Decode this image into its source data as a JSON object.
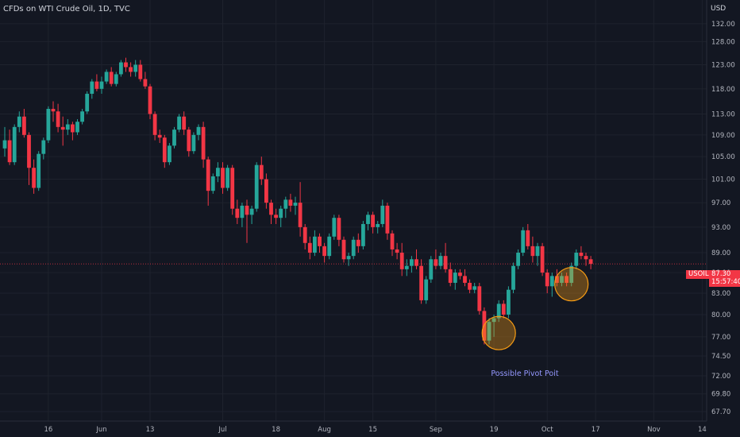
{
  "header": {
    "title": "CFDs on WTI Crude Oil, 1D, TVC",
    "currency": "USD"
  },
  "price_badge": {
    "symbol": "USOIL",
    "last": "87.30",
    "countdown": "15:57:40"
  },
  "colors": {
    "up": "#26a69a",
    "down": "#f23645",
    "background": "#131722",
    "grid": "#1e222d",
    "annotation": "#f59b14",
    "annotation_text": "#9598ff"
  },
  "chart_data": {
    "type": "candlestick",
    "title": "CFDs on WTI Crude Oil, 1D, TVC",
    "y_axis": {
      "ylim": [
        66.6,
        137.5
      ],
      "ticks": [
        67.7,
        69.8,
        72.0,
        74.5,
        77.0,
        80.0,
        83.0,
        86.0,
        89.0,
        93.0,
        97.0,
        101.0,
        105.0,
        109.0,
        113.0,
        118.0,
        123.0,
        128.0,
        132.0
      ],
      "tick_labels": [
        "67.70",
        "69.80",
        "72.00",
        "74.50",
        "77.00",
        "80.00",
        "83.00",
        "86.00",
        "89.00",
        "93.00",
        "97.00",
        "101.00",
        "105.00",
        "109.00",
        "113.00",
        "118.00",
        "123.00",
        "128.00",
        "132.00"
      ],
      "scale": "log"
    },
    "x_axis": {
      "ticks": [
        {
          "label": "16",
          "index": 9
        },
        {
          "label": "Jun",
          "index": 20
        },
        {
          "label": "13",
          "index": 30
        },
        {
          "label": "Jul",
          "index": 45
        },
        {
          "label": "18",
          "index": 56
        },
        {
          "label": "Aug",
          "index": 66
        },
        {
          "label": "15",
          "index": 76
        },
        {
          "label": "Sep",
          "index": 89
        },
        {
          "label": "19",
          "index": 101
        },
        {
          "label": "Oct",
          "index": 112
        },
        {
          "label": "17",
          "index": 122
        },
        {
          "label": "Nov",
          "index": 134
        },
        {
          "label": "14",
          "index": 144
        }
      ]
    },
    "ohlc": [
      [
        106.5,
        110.5,
        105.0,
        108.0
      ],
      [
        108.0,
        110.0,
        103.5,
        104.0
      ],
      [
        104.0,
        111.0,
        103.5,
        110.5
      ],
      [
        110.5,
        113.5,
        109.5,
        112.5
      ],
      [
        112.5,
        114.0,
        108.5,
        109.0
      ],
      [
        109.0,
        109.5,
        100.0,
        103.0
      ],
      [
        103.0,
        104.5,
        98.5,
        99.5
      ],
      [
        99.5,
        106.0,
        99.0,
        105.5
      ],
      [
        105.5,
        108.5,
        104.5,
        108.0
      ],
      [
        108.0,
        114.5,
        107.5,
        114.0
      ],
      [
        114.0,
        115.5,
        111.5,
        113.5
      ],
      [
        113.5,
        115.0,
        109.5,
        110.5
      ],
      [
        110.5,
        112.5,
        107.0,
        110.0
      ],
      [
        110.0,
        112.0,
        109.0,
        111.0
      ],
      [
        111.0,
        111.5,
        108.0,
        109.5
      ],
      [
        109.5,
        112.0,
        109.0,
        111.5
      ],
      [
        111.5,
        114.0,
        111.0,
        113.5
      ],
      [
        113.5,
        117.5,
        113.0,
        117.0
      ],
      [
        117.0,
        120.0,
        116.0,
        119.5
      ],
      [
        119.5,
        121.0,
        117.5,
        118.0
      ],
      [
        118.0,
        120.5,
        117.0,
        119.5
      ],
      [
        119.5,
        122.0,
        119.0,
        121.5
      ],
      [
        121.5,
        122.5,
        118.5,
        119.0
      ],
      [
        119.0,
        121.5,
        118.5,
        121.0
      ],
      [
        121.0,
        124.0,
        120.5,
        123.5
      ],
      [
        123.5,
        124.5,
        121.5,
        122.5
      ],
      [
        122.5,
        123.5,
        120.5,
        121.5
      ],
      [
        121.5,
        124.0,
        120.5,
        123.0
      ],
      [
        123.0,
        124.0,
        119.5,
        120.0
      ],
      [
        120.0,
        121.5,
        118.0,
        118.5
      ],
      [
        118.5,
        119.0,
        112.0,
        113.0
      ],
      [
        113.0,
        113.5,
        108.0,
        109.0
      ],
      [
        109.0,
        110.0,
        107.5,
        108.5
      ],
      [
        108.5,
        109.0,
        103.0,
        104.0
      ],
      [
        104.0,
        107.5,
        103.5,
        107.0
      ],
      [
        107.0,
        110.5,
        106.5,
        110.0
      ],
      [
        110.0,
        113.0,
        109.5,
        112.5
      ],
      [
        112.5,
        113.5,
        109.0,
        110.0
      ],
      [
        110.0,
        110.5,
        105.0,
        106.0
      ],
      [
        106.0,
        109.5,
        105.5,
        109.0
      ],
      [
        109.0,
        111.0,
        108.0,
        110.5
      ],
      [
        110.5,
        111.5,
        103.0,
        104.5
      ],
      [
        104.5,
        105.0,
        96.5,
        99.0
      ],
      [
        99.0,
        102.0,
        98.5,
        101.5
      ],
      [
        101.5,
        104.0,
        100.5,
        103.0
      ],
      [
        103.0,
        104.0,
        98.5,
        99.5
      ],
      [
        99.5,
        103.5,
        99.0,
        103.0
      ],
      [
        103.0,
        103.5,
        95.0,
        96.0
      ],
      [
        96.0,
        97.5,
        93.5,
        94.5
      ],
      [
        94.5,
        97.0,
        93.0,
        96.5
      ],
      [
        96.5,
        97.5,
        90.5,
        95.0
      ],
      [
        95.0,
        96.5,
        93.5,
        96.0
      ],
      [
        96.0,
        104.0,
        95.5,
        103.5
      ],
      [
        103.5,
        105.0,
        100.0,
        101.0
      ],
      [
        101.0,
        102.0,
        96.0,
        97.0
      ],
      [
        97.0,
        97.5,
        93.5,
        95.0
      ],
      [
        95.0,
        96.0,
        93.5,
        94.5
      ],
      [
        94.5,
        96.5,
        93.0,
        96.0
      ],
      [
        96.0,
        98.0,
        94.5,
        97.5
      ],
      [
        97.5,
        98.5,
        95.5,
        96.5
      ],
      [
        96.5,
        98.0,
        95.0,
        97.0
      ],
      [
        97.0,
        100.5,
        91.5,
        93.0
      ],
      [
        93.0,
        93.5,
        89.5,
        90.5
      ],
      [
        90.5,
        91.5,
        88.0,
        89.0
      ],
      [
        89.0,
        92.5,
        88.5,
        91.5
      ],
      [
        91.5,
        92.0,
        89.0,
        90.0
      ],
      [
        90.0,
        90.5,
        87.5,
        88.5
      ],
      [
        88.5,
        92.0,
        88.0,
        91.5
      ],
      [
        91.5,
        95.0,
        91.0,
        94.5
      ],
      [
        94.5,
        95.0,
        90.0,
        91.0
      ],
      [
        91.0,
        91.5,
        87.5,
        88.0
      ],
      [
        88.0,
        89.0,
        87.0,
        88.5
      ],
      [
        88.5,
        91.5,
        88.0,
        91.0
      ],
      [
        91.0,
        92.0,
        89.0,
        90.0
      ],
      [
        90.0,
        94.0,
        89.5,
        93.5
      ],
      [
        93.5,
        95.5,
        92.5,
        95.0
      ],
      [
        95.0,
        95.5,
        92.0,
        93.0
      ],
      [
        93.0,
        94.0,
        92.0,
        93.5
      ],
      [
        93.5,
        97.5,
        93.0,
        96.5
      ],
      [
        96.5,
        97.0,
        91.0,
        92.0
      ],
      [
        92.0,
        92.5,
        88.5,
        89.5
      ],
      [
        89.5,
        90.5,
        88.0,
        89.0
      ],
      [
        89.0,
        90.5,
        85.5,
        86.5
      ],
      [
        86.5,
        88.0,
        85.5,
        87.0
      ],
      [
        87.0,
        88.5,
        86.0,
        88.0
      ],
      [
        88.0,
        89.5,
        86.5,
        87.0
      ],
      [
        87.0,
        88.0,
        81.5,
        82.0
      ],
      [
        82.0,
        85.5,
        81.5,
        85.0
      ],
      [
        85.0,
        88.5,
        84.5,
        88.0
      ],
      [
        88.0,
        89.5,
        86.5,
        87.0
      ],
      [
        87.0,
        89.0,
        86.5,
        88.5
      ],
      [
        88.5,
        90.5,
        86.0,
        86.5
      ],
      [
        86.5,
        87.5,
        84.0,
        84.5
      ],
      [
        84.5,
        86.5,
        83.5,
        86.0
      ],
      [
        86.0,
        86.5,
        85.0,
        85.5
      ],
      [
        85.5,
        86.5,
        84.0,
        84.5
      ],
      [
        84.5,
        85.0,
        83.0,
        83.5
      ],
      [
        83.5,
        84.5,
        83.0,
        84.0
      ],
      [
        84.0,
        84.5,
        80.0,
        80.5
      ],
      [
        80.5,
        81.0,
        76.0,
        76.5
      ],
      [
        76.5,
        79.5,
        76.0,
        79.0
      ],
      [
        79.0,
        80.0,
        77.0,
        79.5
      ],
      [
        79.5,
        82.0,
        79.0,
        81.5
      ],
      [
        81.5,
        82.0,
        79.5,
        80.0
      ],
      [
        80.0,
        84.0,
        79.5,
        83.5
      ],
      [
        83.5,
        87.5,
        83.0,
        87.0
      ],
      [
        87.0,
        89.5,
        86.5,
        89.0
      ],
      [
        89.0,
        93.0,
        88.5,
        92.5
      ],
      [
        92.5,
        93.5,
        89.5,
        90.0
      ],
      [
        90.0,
        91.5,
        87.5,
        88.5
      ],
      [
        88.5,
        90.5,
        87.0,
        90.0
      ],
      [
        90.0,
        90.5,
        85.5,
        86.0
      ],
      [
        86.0,
        86.5,
        83.0,
        84.0
      ],
      [
        84.0,
        86.0,
        82.5,
        85.5
      ],
      [
        85.5,
        86.5,
        84.0,
        84.5
      ],
      [
        84.5,
        86.0,
        84.0,
        85.5
      ],
      [
        85.5,
        86.0,
        84.0,
        84.5
      ],
      [
        84.5,
        87.5,
        84.0,
        87.0
      ],
      [
        87.0,
        89.5,
        86.5,
        89.0
      ],
      [
        89.0,
        90.0,
        88.0,
        88.5
      ],
      [
        88.5,
        89.0,
        87.0,
        88.0
      ],
      [
        88.0,
        88.5,
        86.5,
        87.3
      ]
    ],
    "last_price": 87.3,
    "annotations": [
      {
        "type": "circle",
        "center_index": 102,
        "center_price": 77.5
      },
      {
        "type": "circle",
        "center_index": 117,
        "center_price": 84.3
      },
      {
        "type": "text",
        "text": "Possible Pivot Poit"
      }
    ]
  }
}
